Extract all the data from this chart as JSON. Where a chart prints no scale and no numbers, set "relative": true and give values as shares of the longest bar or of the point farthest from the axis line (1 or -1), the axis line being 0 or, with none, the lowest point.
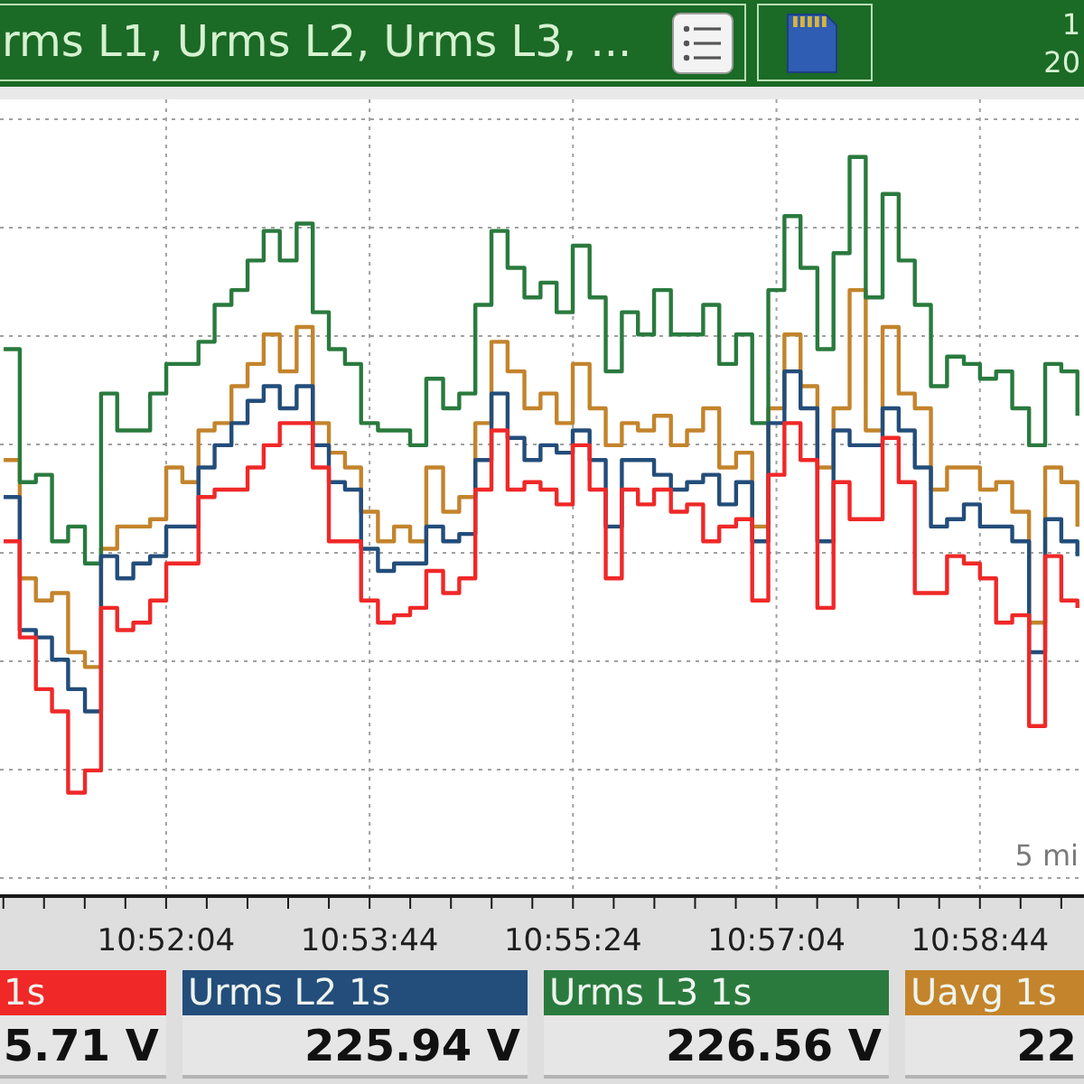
{
  "chart_data": {
    "type": "step",
    "title": "rms L1, Urms L2, Urms L3, ...",
    "x": [
      10.8456,
      10.8478,
      10.85,
      10.8522,
      10.8544,
      10.8567,
      10.8589,
      10.8611,
      10.8633,
      10.8656,
      10.8678,
      10.87,
      10.8722,
      10.8744,
      10.8767,
      10.8789,
      10.8811,
      10.8833,
      10.8856,
      10.8878,
      10.89,
      10.8922,
      10.8944,
      10.8967,
      10.8989,
      10.9011,
      10.9033,
      10.9056,
      10.9078,
      10.91,
      10.9122,
      10.9144,
      10.9167,
      10.9189,
      10.9211,
      10.9233,
      10.9256,
      10.9278,
      10.93,
      10.9322,
      10.9344,
      10.9367,
      10.9389,
      10.9411,
      10.9433,
      10.9456,
      10.9478,
      10.95,
      10.9522,
      10.9544,
      10.9567,
      10.9589,
      10.9611,
      10.9633,
      10.9656,
      10.9678,
      10.97,
      10.9722,
      10.9744,
      10.9767,
      10.9789,
      10.9811,
      10.9833,
      10.9856,
      10.9878,
      10.99,
      10.9922
    ],
    "series": [
      {
        "name": "1s",
        "color": "#f02828",
        "values": [
          0.48,
          0.35,
          0.28,
          0.25,
          0.14,
          0.17,
          0.39,
          0.36,
          0.37,
          0.4,
          0.45,
          0.45,
          0.54,
          0.55,
          0.55,
          0.58,
          0.61,
          0.64,
          0.64,
          0.58,
          0.48,
          0.48,
          0.4,
          0.37,
          0.38,
          0.39,
          0.44,
          0.41,
          0.43,
          0.55,
          0.63,
          0.55,
          0.56,
          0.55,
          0.53,
          0.61,
          0.55,
          0.43,
          0.55,
          0.53,
          0.55,
          0.52,
          0.53,
          0.48,
          0.5,
          0.51,
          0.4,
          0.57,
          0.64,
          0.59,
          0.39,
          0.56,
          0.51,
          0.51,
          0.62,
          0.56,
          0.41,
          0.41,
          0.46,
          0.45,
          0.43,
          0.37,
          0.38,
          0.23,
          0.46,
          0.4,
          0.39
        ]
      },
      {
        "name": "Urms L2 1s",
        "color": "#234d7a",
        "values": [
          0.54,
          0.36,
          0.35,
          0.32,
          0.28,
          0.25,
          0.46,
          0.43,
          0.45,
          0.46,
          0.5,
          0.5,
          0.58,
          0.61,
          0.64,
          0.67,
          0.69,
          0.66,
          0.69,
          0.61,
          0.56,
          0.55,
          0.47,
          0.44,
          0.45,
          0.45,
          0.5,
          0.48,
          0.49,
          0.59,
          0.68,
          0.62,
          0.59,
          0.61,
          0.6,
          0.63,
          0.59,
          0.5,
          0.59,
          0.59,
          0.57,
          0.55,
          0.56,
          0.57,
          0.53,
          0.56,
          0.48,
          0.64,
          0.71,
          0.66,
          0.48,
          0.63,
          0.61,
          0.61,
          0.66,
          0.63,
          0.58,
          0.5,
          0.51,
          0.53,
          0.5,
          0.5,
          0.48,
          0.33,
          0.51,
          0.48,
          0.46
        ]
      },
      {
        "name": "Urms L3 1s",
        "color": "#2a7a3e",
        "values": [
          0.74,
          0.56,
          0.57,
          0.48,
          0.5,
          0.45,
          0.68,
          0.63,
          0.63,
          0.68,
          0.72,
          0.72,
          0.75,
          0.8,
          0.82,
          0.86,
          0.9,
          0.86,
          0.91,
          0.79,
          0.74,
          0.72,
          0.64,
          0.63,
          0.63,
          0.61,
          0.7,
          0.66,
          0.68,
          0.8,
          0.9,
          0.85,
          0.81,
          0.83,
          0.79,
          0.88,
          0.81,
          0.71,
          0.79,
          0.76,
          0.82,
          0.76,
          0.76,
          0.8,
          0.72,
          0.76,
          0.64,
          0.82,
          0.92,
          0.85,
          0.74,
          0.87,
          1,
          0.81,
          0.95,
          0.86,
          0.8,
          0.69,
          0.73,
          0.72,
          0.7,
          0.71,
          0.66,
          0.61,
          0.72,
          0.71,
          0.65
        ]
      },
      {
        "name": "Uavg 1s",
        "color": "#c3842c",
        "values": [
          0.59,
          0.43,
          0.4,
          0.41,
          0.33,
          0.31,
          0.47,
          0.5,
          0.5,
          0.51,
          0.58,
          0.56,
          0.63,
          0.64,
          0.69,
          0.72,
          0.76,
          0.71,
          0.77,
          0.64,
          0.6,
          0.58,
          0.52,
          0.48,
          0.5,
          0.48,
          0.58,
          0.52,
          0.54,
          0.64,
          0.75,
          0.71,
          0.66,
          0.68,
          0.64,
          0.72,
          0.66,
          0.61,
          0.64,
          0.63,
          0.65,
          0.61,
          0.63,
          0.66,
          0.58,
          0.6,
          0.5,
          0.66,
          0.76,
          0.69,
          0.58,
          0.66,
          0.82,
          0.63,
          0.77,
          0.68,
          0.66,
          0.55,
          0.58,
          0.58,
          0.55,
          0.56,
          0.52,
          0.37,
          0.58,
          0.56,
          0.5
        ]
      }
    ],
    "relative": true,
    "xlim": [
      10.8451,
      10.9931
    ],
    "xticks": [
      {
        "value": 10.84556,
        "label": null
      },
      {
        "value": 10.85111,
        "label": null
      },
      {
        "value": 10.85667,
        "label": null
      },
      {
        "value": 10.86222,
        "label": null
      },
      {
        "value": 10.86778,
        "label": "10:52:04"
      },
      {
        "value": 10.87333,
        "label": null
      },
      {
        "value": 10.87889,
        "label": null
      },
      {
        "value": 10.88444,
        "label": null
      },
      {
        "value": 10.89,
        "label": null
      },
      {
        "value": 10.89556,
        "label": "10:53:44"
      },
      {
        "value": 10.90111,
        "label": null
      },
      {
        "value": 10.90667,
        "label": null
      },
      {
        "value": 10.91222,
        "label": null
      },
      {
        "value": 10.91778,
        "label": null
      },
      {
        "value": 10.92333,
        "label": "10:55:24"
      },
      {
        "value": 10.92889,
        "label": null
      },
      {
        "value": 10.93444,
        "label": null
      },
      {
        "value": 10.94,
        "label": null
      },
      {
        "value": 10.94556,
        "label": null
      },
      {
        "value": 10.95111,
        "label": "10:57:04"
      },
      {
        "value": 10.95667,
        "label": null
      },
      {
        "value": 10.96222,
        "label": null
      },
      {
        "value": 10.96778,
        "label": null
      },
      {
        "value": 10.97333,
        "label": null
      },
      {
        "value": 10.97889,
        "label": "10:58:44"
      },
      {
        "value": 10.98444,
        "label": null
      },
      {
        "value": 10.99,
        "label": null
      }
    ],
    "grid": true,
    "legend": "bottom",
    "line_style": "solid",
    "annotations": [
      "5.71 V",
      "225.94 V",
      "226.56 V",
      "22",
      "5 mi",
      "1",
      "20"
    ]
  }
}
